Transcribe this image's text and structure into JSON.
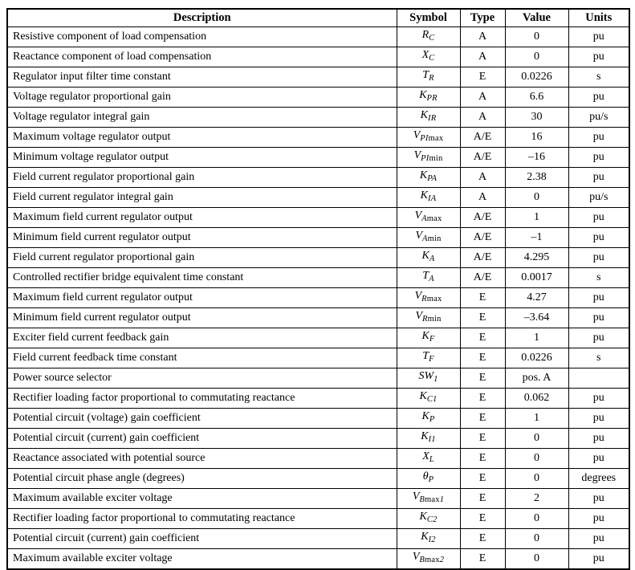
{
  "colors": {
    "background": "#ffffff",
    "text": "#000000",
    "border": "#000000"
  },
  "table": {
    "columns": [
      "Description",
      "Symbol",
      "Type",
      "Value",
      "Units"
    ],
    "rows": [
      {
        "description": "Resistive component of load compensation",
        "symbol": {
          "base": "R",
          "sub_i": "C"
        },
        "type": "A",
        "value": "0",
        "units": "pu"
      },
      {
        "description": "Reactance component of load compensation",
        "symbol": {
          "base": "X",
          "sub_i": "C"
        },
        "type": "A",
        "value": "0",
        "units": "pu"
      },
      {
        "description": "Regulator input filter time constant",
        "symbol": {
          "base": "T",
          "sub_i": "R"
        },
        "type": "E",
        "value": "0.0226",
        "units": "s"
      },
      {
        "description": "Voltage regulator proportional gain",
        "symbol": {
          "base": "K",
          "sub_i": "PR"
        },
        "type": "A",
        "value": "6.6",
        "units": "pu"
      },
      {
        "description": "Voltage regulator integral gain",
        "symbol": {
          "base": "K",
          "sub_i": "IR"
        },
        "type": "A",
        "value": "30",
        "units": "pu/s"
      },
      {
        "description": "Maximum voltage regulator output",
        "symbol": {
          "base": "V",
          "sub_i": "PI",
          "sub_r": "max"
        },
        "type": "A/E",
        "value": "16",
        "units": "pu"
      },
      {
        "description": "Minimum voltage regulator output",
        "symbol": {
          "base": "V",
          "sub_i": "PI",
          "sub_r": "min"
        },
        "type": "A/E",
        "value": "–16",
        "units": "pu"
      },
      {
        "description": "Field current regulator proportional gain",
        "symbol": {
          "base": "K",
          "sub_i": "PA"
        },
        "type": "A",
        "value": "2.38",
        "units": "pu"
      },
      {
        "description": "Field current regulator integral gain",
        "symbol": {
          "base": "K",
          "sub_i": "IA"
        },
        "type": "A",
        "value": "0",
        "units": "pu/s"
      },
      {
        "description": "Maximum field current regulator output",
        "symbol": {
          "base": "V",
          "sub_i": "A",
          "sub_r": "max"
        },
        "type": "A/E",
        "value": "1",
        "units": "pu"
      },
      {
        "description": "Minimum field current regulator output",
        "symbol": {
          "base": "V",
          "sub_i": "A",
          "sub_r": "min"
        },
        "type": "A/E",
        "value": "–1",
        "units": "pu"
      },
      {
        "description": "Field current regulator proportional gain",
        "symbol": {
          "base": "K",
          "sub_i": "A"
        },
        "type": "A/E",
        "value": "4.295",
        "units": "pu"
      },
      {
        "description": "Controlled rectifier bridge equivalent time constant",
        "symbol": {
          "base": "T",
          "sub_i": "A"
        },
        "type": "A/E",
        "value": "0.0017",
        "units": "s"
      },
      {
        "description": "Maximum field current regulator output",
        "symbol": {
          "base": "V",
          "sub_i": "R",
          "sub_r": "max"
        },
        "type": "E",
        "value": "4.27",
        "units": "pu"
      },
      {
        "description": "Minimum field current regulator output",
        "symbol": {
          "base": "V",
          "sub_i": "R",
          "sub_r": "min"
        },
        "type": "E",
        "value": "–3.64",
        "units": "pu"
      },
      {
        "description": "Exciter field current feedback gain",
        "symbol": {
          "base": "K",
          "sub_i": "F"
        },
        "type": "E",
        "value": "1",
        "units": "pu"
      },
      {
        "description": "Field current feedback time constant",
        "symbol": {
          "base": "T",
          "sub_i": "F"
        },
        "type": "E",
        "value": "0.0226",
        "units": "s"
      },
      {
        "description": "Power source selector",
        "symbol": {
          "base": "SW",
          "sub_i": "1"
        },
        "type": "E",
        "value": "pos. A",
        "units": ""
      },
      {
        "description": "Rectifier loading factor proportional to commutating reactance",
        "symbol": {
          "base": "K",
          "sub_i": "C1"
        },
        "type": "E",
        "value": "0.062",
        "units": "pu"
      },
      {
        "description": "Potential circuit (voltage) gain coefficient",
        "symbol": {
          "base": "K",
          "sub_i": "P"
        },
        "type": "E",
        "value": "1",
        "units": "pu"
      },
      {
        "description": "Potential circuit (current) gain coefficient",
        "symbol": {
          "base": "K",
          "sub_i": "I1"
        },
        "type": "E",
        "value": "0",
        "units": "pu"
      },
      {
        "description": "Reactance associated with potential source",
        "symbol": {
          "base": "X",
          "sub_i": "L"
        },
        "type": "E",
        "value": "0",
        "units": "pu"
      },
      {
        "description": "Potential circuit phase angle (degrees)",
        "symbol": {
          "base": "θ",
          "sub_i": "P"
        },
        "type": "E",
        "value": "0",
        "units": "degrees"
      },
      {
        "description": "Maximum available exciter voltage",
        "symbol": {
          "base": "V",
          "sub_i": "B",
          "sub_r": "max",
          "sub_i2": "1"
        },
        "type": "E",
        "value": "2",
        "units": "pu"
      },
      {
        "description": "Rectifier loading factor proportional to commutating reactance",
        "symbol": {
          "base": "K",
          "sub_i": "C2"
        },
        "type": "E",
        "value": "0",
        "units": "pu"
      },
      {
        "description": "Potential circuit (current) gain coefficient",
        "symbol": {
          "base": "K",
          "sub_i": "I2"
        },
        "type": "E",
        "value": "0",
        "units": "pu"
      },
      {
        "description": "Maximum available exciter voltage",
        "symbol": {
          "base": "V",
          "sub_i": "B",
          "sub_r": "max",
          "sub_i2": "2"
        },
        "type": "E",
        "value": "0",
        "units": "pu"
      }
    ]
  }
}
